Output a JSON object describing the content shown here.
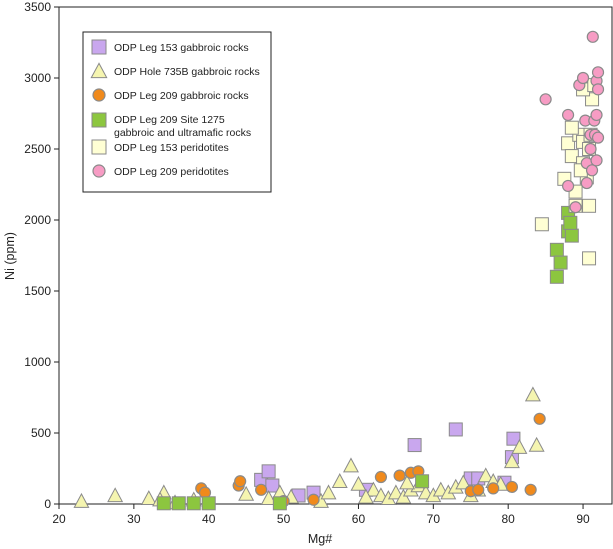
{
  "chart_data": {
    "type": "scatter",
    "xlabel": "Mg#",
    "ylabel": "Ni (ppm)",
    "xlim": [
      20,
      94
    ],
    "ylim": [
      0,
      3500
    ],
    "xticks": [
      20,
      30,
      40,
      50,
      60,
      70,
      80,
      90
    ],
    "yticks": [
      0,
      500,
      1000,
      1500,
      2000,
      2500,
      3000,
      3500
    ],
    "grid": false,
    "legend_position": "top-left",
    "series": [
      {
        "name": "ODP Leg 153 gabbroic rocks",
        "marker": "square",
        "fill": "#c9a7ee",
        "points": [
          [
            47,
            170
          ],
          [
            48,
            230
          ],
          [
            52,
            60
          ],
          [
            54,
            80
          ],
          [
            61,
            100
          ],
          [
            67.5,
            415
          ],
          [
            73,
            525
          ],
          [
            75,
            180
          ],
          [
            76,
            180
          ],
          [
            79.5,
            150
          ],
          [
            80.5,
            330
          ],
          [
            80.7,
            460
          ],
          [
            48.5,
            130
          ]
        ]
      },
      {
        "name": "ODP Hole 735B gabbroic rocks",
        "marker": "triangle",
        "fill": "#f5f5b0",
        "points": [
          [
            23,
            20
          ],
          [
            27.5,
            60
          ],
          [
            32,
            40
          ],
          [
            34,
            80
          ],
          [
            33.5,
            30
          ],
          [
            35.5,
            10
          ],
          [
            38,
            30
          ],
          [
            45,
            70
          ],
          [
            48,
            40
          ],
          [
            49.5,
            80
          ],
          [
            51,
            50
          ],
          [
            55,
            20
          ],
          [
            56,
            80
          ],
          [
            57.5,
            160
          ],
          [
            59,
            270
          ],
          [
            60,
            140
          ],
          [
            62,
            100
          ],
          [
            63,
            60
          ],
          [
            64,
            40
          ],
          [
            65,
            80
          ],
          [
            66,
            50
          ],
          [
            67,
            100
          ],
          [
            68,
            130
          ],
          [
            69,
            80
          ],
          [
            70,
            60
          ],
          [
            71,
            100
          ],
          [
            72,
            80
          ],
          [
            73,
            120
          ],
          [
            74,
            150
          ],
          [
            76,
            100
          ],
          [
            77,
            200
          ],
          [
            78,
            160
          ],
          [
            80.5,
            300
          ],
          [
            81.5,
            400
          ],
          [
            83.3,
            770
          ],
          [
            83.8,
            415
          ],
          [
            61,
            50
          ],
          [
            66.5,
            150
          ],
          [
            75,
            60
          ],
          [
            79,
            140
          ]
        ]
      },
      {
        "name": "ODP Leg 209 gabbroic rocks",
        "marker": "circle",
        "fill": "#f08a1c",
        "points": [
          [
            39,
            110
          ],
          [
            39.5,
            80
          ],
          [
            44,
            130
          ],
          [
            44.2,
            160
          ],
          [
            47,
            100
          ],
          [
            50,
            20
          ],
          [
            54,
            30
          ],
          [
            63,
            190
          ],
          [
            65.5,
            200
          ],
          [
            67,
            220
          ],
          [
            68,
            230
          ],
          [
            75,
            90
          ],
          [
            76,
            100
          ],
          [
            78,
            110
          ],
          [
            80.5,
            120
          ],
          [
            83,
            100
          ],
          [
            84.2,
            600
          ]
        ]
      },
      {
        "name": "ODP Leg 209 Site 1275\ngabbroic and ultramafic rocks",
        "marker": "square",
        "fill": "#8cc63f",
        "points": [
          [
            34,
            5
          ],
          [
            36,
            5
          ],
          [
            38,
            5
          ],
          [
            40,
            5
          ],
          [
            49.5,
            5
          ],
          [
            68.5,
            160
          ],
          [
            86.5,
            1600
          ],
          [
            86.5,
            1790
          ],
          [
            87,
            1700
          ],
          [
            88,
            1920
          ],
          [
            88.5,
            1890
          ],
          [
            88,
            2050
          ],
          [
            88.3,
            1980
          ]
        ]
      },
      {
        "name": "ODP Leg 153 peridotites",
        "marker": "square",
        "fill": "#ffffd4",
        "points": [
          [
            84.5,
            1970
          ],
          [
            87.5,
            2290
          ],
          [
            88,
            2540
          ],
          [
            88.5,
            2450
          ],
          [
            89,
            2200
          ],
          [
            89,
            2100
          ],
          [
            89.5,
            2600
          ],
          [
            90,
            2400
          ],
          [
            90,
            2550
          ],
          [
            90.5,
            2300
          ],
          [
            90.8,
            2500
          ],
          [
            90.8,
            2100
          ],
          [
            91,
            2600
          ],
          [
            91.2,
            2850
          ],
          [
            90,
            2920
          ],
          [
            90.8,
            1730
          ],
          [
            88.5,
            2650
          ],
          [
            89.7,
            2350
          ],
          [
            91.5,
            2950
          ]
        ]
      },
      {
        "name": "ODP Leg 209 peridotites",
        "marker": "circle",
        "fill": "#f79cc4",
        "points": [
          [
            85,
            2850
          ],
          [
            88,
            2740
          ],
          [
            88,
            2240
          ],
          [
            89,
            2090
          ],
          [
            89.5,
            2950
          ],
          [
            90,
            3000
          ],
          [
            90.3,
            2700
          ],
          [
            90.5,
            2400
          ],
          [
            91,
            2600
          ],
          [
            91,
            2500
          ],
          [
            91.2,
            2350
          ],
          [
            91.3,
            3290
          ],
          [
            91.5,
            2700
          ],
          [
            91.6,
            2600
          ],
          [
            91.8,
            2420
          ],
          [
            91.8,
            2980
          ],
          [
            92,
            3040
          ],
          [
            92,
            2920
          ],
          [
            92,
            2580
          ],
          [
            91.8,
            2740
          ],
          [
            90.5,
            2260
          ]
        ]
      }
    ]
  }
}
